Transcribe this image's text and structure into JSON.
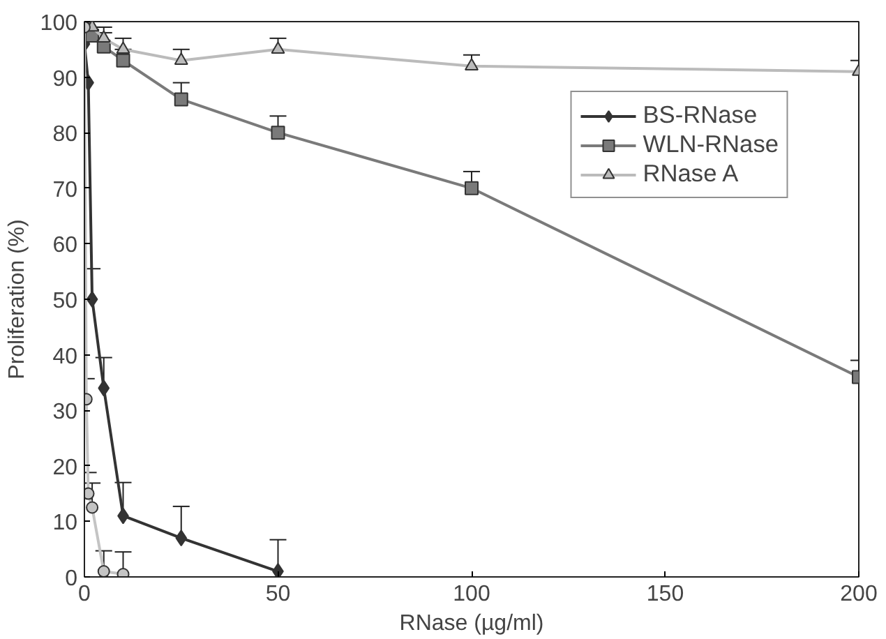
{
  "chart_data": {
    "type": "line",
    "xlabel": "RNase (µg/ml)",
    "ylabel": "Proliferation (%)",
    "xlim": [
      0,
      200
    ],
    "ylim": [
      0,
      100
    ],
    "xticks": [
      0,
      50,
      100,
      150,
      200
    ],
    "yticks": [
      0,
      10,
      20,
      30,
      40,
      50,
      60,
      70,
      80,
      90,
      100
    ],
    "grid": false,
    "legend": "top right",
    "series": [
      {
        "name": "BS-RNase",
        "color": "#333333",
        "marker": "diamond",
        "x": [
          0,
          1,
          2,
          5,
          10,
          25,
          50
        ],
        "values": [
          96,
          89,
          50,
          34,
          11,
          7,
          1
        ],
        "errors": [
          null,
          null,
          [
            50,
            55.5
          ],
          [
            34,
            39.5
          ],
          [
            11,
            17
          ],
          [
            7,
            12.7
          ],
          [
            1,
            6.7
          ]
        ]
      },
      {
        "name": "WLN-RNase",
        "color": "#7a7a7a",
        "marker": "square",
        "x": [
          0,
          2,
          5,
          10,
          25,
          50,
          100,
          200
        ],
        "values": [
          99,
          97.5,
          95.5,
          93,
          86,
          80,
          70,
          36
        ],
        "errors": [
          null,
          [
            97.5,
            99
          ],
          [
            95.5,
            98
          ],
          [
            93,
            95
          ],
          [
            86,
            89
          ],
          [
            80,
            83
          ],
          [
            70,
            73
          ],
          [
            36,
            39
          ]
        ]
      },
      {
        "name": "RNase A",
        "color": "#bbbbbb",
        "marker": "triangle",
        "x": [
          2,
          5,
          10,
          25,
          50,
          100,
          200
        ],
        "values": [
          99,
          97,
          95,
          93,
          95,
          92,
          91
        ],
        "errors": [
          [
            99,
            100
          ],
          [
            97,
            99
          ],
          [
            95,
            97
          ],
          [
            93,
            95
          ],
          [
            95,
            97
          ],
          [
            92,
            94
          ],
          [
            91,
            93
          ]
        ]
      },
      {
        "color": "#c4c4c4",
        "marker": "circle",
        "x": [
          0,
          0.5,
          1,
          2,
          5,
          10
        ],
        "values": [
          99,
          32,
          15,
          12.5,
          1,
          0.5
        ],
        "errors": [
          null,
          [
            32,
            35.7
          ],
          [
            15,
            18.8
          ],
          [
            12.5,
            16.9
          ],
          [
            1,
            4.7
          ],
          [
            0.5,
            4.5
          ]
        ]
      }
    ]
  }
}
